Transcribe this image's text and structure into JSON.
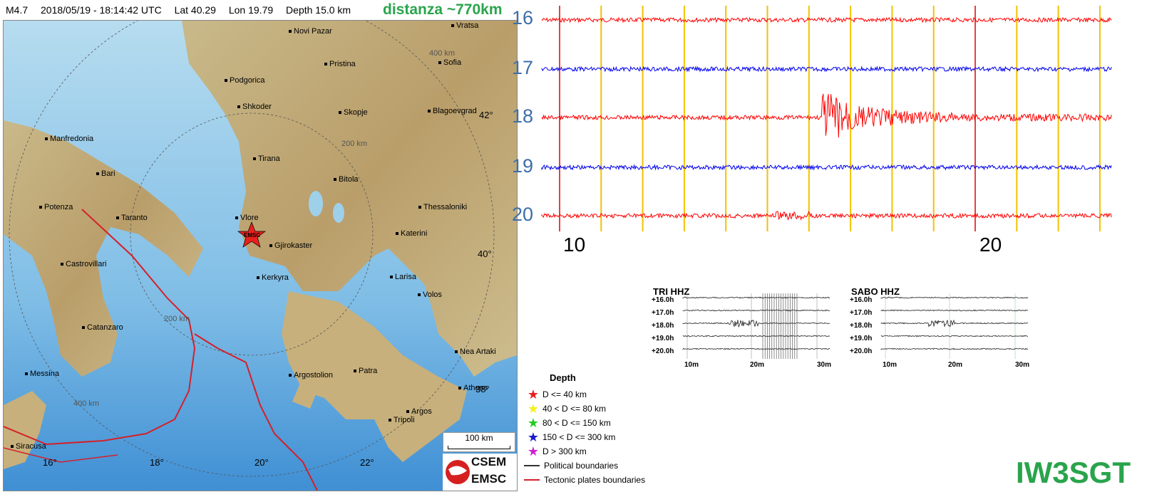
{
  "header": {
    "magnitude": "M4.7",
    "datetime": "2018/05/19 - 18:14:42 UTC",
    "lat": "Lat 40.29",
    "lon": "Lon  19.79",
    "depth": "Depth  15.0 km",
    "distance": "distanza ~770km"
  },
  "map": {
    "cities": [
      {
        "name": "Novi Pazar"
      },
      {
        "name": "Vratsa"
      },
      {
        "name": "Pristina"
      },
      {
        "name": "Sofia"
      },
      {
        "name": "Podgorica"
      },
      {
        "name": "Shkoder"
      },
      {
        "name": "Skopje"
      },
      {
        "name": "Blagoevgrad"
      },
      {
        "name": "Manfredonia"
      },
      {
        "name": "Bari"
      },
      {
        "name": "Tirana"
      },
      {
        "name": "Bitola"
      },
      {
        "name": "Potenza"
      },
      {
        "name": "Taranto"
      },
      {
        "name": "Thessaloniki"
      },
      {
        "name": "Vlore"
      },
      {
        "name": "Gjirokaster"
      },
      {
        "name": "Katerini"
      },
      {
        "name": "Castrovillari"
      },
      {
        "name": "Kerkyra"
      },
      {
        "name": "Larisa"
      },
      {
        "name": "Volos"
      },
      {
        "name": "Catanzaro"
      },
      {
        "name": "Nea Artaki"
      },
      {
        "name": "Messina"
      },
      {
        "name": "Argostolion"
      },
      {
        "name": "Patra"
      },
      {
        "name": "Athens"
      },
      {
        "name": "Argos"
      },
      {
        "name": "Tripoli"
      },
      {
        "name": "Siracusa"
      }
    ],
    "longitudes": [
      "16°",
      "18°",
      "20°",
      "22°"
    ],
    "latitudes": [
      "42°",
      "40°",
      "38°"
    ],
    "rings": [
      "400 km",
      "200 km",
      "200 km",
      "400 km"
    ],
    "epicenter_label": "EMSC",
    "scale_label": "100 km",
    "logo_line1": "CSEM",
    "logo_line2": "EMSC"
  },
  "legend": {
    "title": "Depth",
    "items": [
      {
        "label": "D <= 40 km",
        "color": "#e8201c"
      },
      {
        "label": "40 < D <= 80 km",
        "color": "#f4f01a"
      },
      {
        "label": "80 < D <= 150 km",
        "color": "#22cc22"
      },
      {
        "label": "150 < D <= 300 km",
        "color": "#1a1acc"
      },
      {
        "label": "D > 300 km",
        "color": "#d020d0"
      }
    ],
    "lines": [
      {
        "label": "Political boundaries",
        "color": "#333333"
      },
      {
        "label": "Tectonic plates boundaries",
        "color": "#d4202a"
      }
    ]
  },
  "seismogram": {
    "hours": [
      "16",
      "17",
      "18",
      "19",
      "20"
    ],
    "trace_colors": [
      "#ff0000",
      "#0000ee",
      "#ff0000",
      "#0000ee",
      "#ff0000"
    ],
    "minute_labels": [
      "10",
      "20"
    ],
    "grid_color": "#f2c200",
    "marker_color": "#e00000"
  },
  "mini_panels": [
    {
      "title": "TRI HHZ",
      "hours": [
        "+16.0h",
        "+17.0h",
        "+18.0h",
        "+19.0h",
        "+20.0h"
      ],
      "minutes": [
        "10m",
        "20m",
        "30m"
      ]
    },
    {
      "title": "SABO HHZ",
      "hours": [
        "+16.0h",
        "+17.0h",
        "+18.0h",
        "+19.0h",
        "+20.0h"
      ],
      "minutes": [
        "10m",
        "20m",
        "30m"
      ]
    }
  ],
  "callsign": "IW3SGT"
}
